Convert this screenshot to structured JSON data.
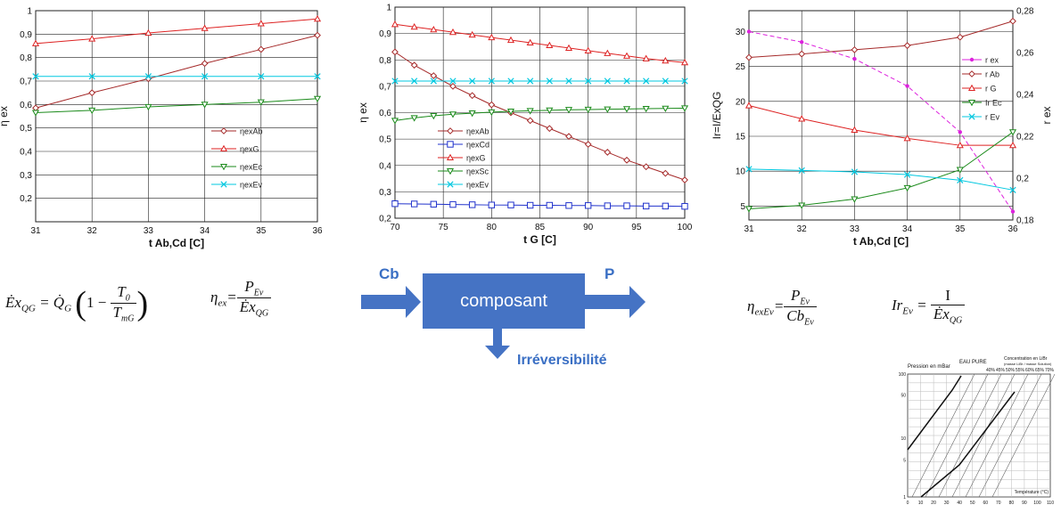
{
  "chart_data": [
    {
      "type": "line",
      "ylabel": "η ex",
      "xlabel": "t Ab,Cd [C]",
      "x": [
        31,
        32,
        33,
        34,
        35,
        36
      ],
      "xlim": [
        31,
        36
      ],
      "ylim": [
        0.1,
        1.0
      ],
      "xticks": [
        "31",
        "32",
        "33",
        "34",
        "35",
        "36"
      ],
      "yticks": [
        "0,2",
        "0,3",
        "0,4",
        "0,5",
        "0,6",
        "0,7",
        "0,8",
        "0,9",
        "1"
      ],
      "grid": true,
      "legend_position": "bottom-right",
      "series": [
        {
          "name": "ηexAb",
          "color": "#a52a2a",
          "marker": "diamond",
          "values": [
            0.585,
            0.65,
            0.71,
            0.775,
            0.835,
            0.895
          ]
        },
        {
          "name": "ηexG",
          "color": "#dd2222",
          "marker": "triangle",
          "values": [
            0.86,
            0.88,
            0.905,
            0.925,
            0.945,
            0.965
          ]
        },
        {
          "name": "ηexEc",
          "color": "#1a8a1a",
          "marker": "triangle-down",
          "values": [
            0.565,
            0.575,
            0.59,
            0.6,
            0.61,
            0.625
          ]
        },
        {
          "name": "ηexEv",
          "color": "#00c8e0",
          "marker": "x",
          "values": [
            0.72,
            0.72,
            0.72,
            0.72,
            0.72,
            0.72
          ]
        }
      ]
    },
    {
      "type": "line",
      "ylabel": "η ex",
      "xlabel": "t G [C]",
      "x": [
        70,
        72,
        74,
        76,
        78,
        80,
        82,
        84,
        86,
        88,
        90,
        92,
        94,
        96,
        98,
        100
      ],
      "xlim": [
        70,
        100
      ],
      "ylim": [
        0.2,
        1.0
      ],
      "xticks": [
        "70",
        "75",
        "80",
        "85",
        "90",
        "95",
        "100"
      ],
      "yticks": [
        "0,2",
        "0,3",
        "0,4",
        "0,5",
        "0,6",
        "0,7",
        "0,8",
        "0,9",
        "1"
      ],
      "grid": true,
      "legend_position": "bottom-left",
      "series": [
        {
          "name": "ηexAb",
          "color": "#a52a2a",
          "marker": "diamond",
          "values": [
            0.83,
            0.78,
            0.74,
            0.7,
            0.665,
            0.63,
            0.6,
            0.57,
            0.54,
            0.51,
            0.48,
            0.45,
            0.42,
            0.395,
            0.37,
            0.345
          ]
        },
        {
          "name": "ηexCd",
          "color": "#2233cc",
          "marker": "square",
          "values": [
            0.255,
            0.254,
            0.253,
            0.252,
            0.251,
            0.25,
            0.25,
            0.249,
            0.249,
            0.248,
            0.248,
            0.247,
            0.247,
            0.246,
            0.246,
            0.245
          ]
        },
        {
          "name": "ηexG",
          "color": "#dd2222",
          "marker": "triangle",
          "values": [
            0.935,
            0.925,
            0.915,
            0.905,
            0.895,
            0.885,
            0.875,
            0.865,
            0.855,
            0.845,
            0.835,
            0.825,
            0.815,
            0.805,
            0.797,
            0.79
          ]
        },
        {
          "name": "ηexSc",
          "color": "#1a8a1a",
          "marker": "triangle-down",
          "values": [
            0.57,
            0.58,
            0.588,
            0.594,
            0.598,
            0.602,
            0.605,
            0.607,
            0.609,
            0.611,
            0.612,
            0.613,
            0.614,
            0.615,
            0.616,
            0.617
          ]
        },
        {
          "name": "ηexEv",
          "color": "#00c8e0",
          "marker": "x",
          "values": [
            0.72,
            0.72,
            0.72,
            0.72,
            0.72,
            0.72,
            0.72,
            0.72,
            0.72,
            0.72,
            0.72,
            0.72,
            0.72,
            0.72,
            0.72,
            0.72
          ]
        }
      ]
    },
    {
      "type": "line",
      "ylabel": "Ir=I/ExQG",
      "ylabel_right": "r ex",
      "xlabel": "t Ab,Cd [C]",
      "x": [
        31,
        32,
        33,
        34,
        35,
        36
      ],
      "xlim": [
        31,
        36
      ],
      "ylim": [
        3,
        33
      ],
      "ylim_right": [
        0.18,
        0.28
      ],
      "xticks": [
        "31",
        "32",
        "33",
        "34",
        "35",
        "36"
      ],
      "yticks": [
        "5",
        "10",
        "15",
        "20",
        "25",
        "30"
      ],
      "yticks_right": [
        "0,18",
        "0,2",
        "0,22",
        "0,24",
        "0,26",
        "0,28"
      ],
      "grid": true,
      "legend_position": "right",
      "series": [
        {
          "name": "r ex",
          "axis": "right",
          "color": "#dd22dd",
          "marker": "dot",
          "values": [
            0.27,
            0.265,
            0.257,
            0.244,
            0.222,
            0.184
          ]
        },
        {
          "name": "r Ab",
          "color": "#a52a2a",
          "marker": "diamond",
          "values": [
            26.3,
            26.8,
            27.4,
            28.0,
            29.2,
            31.5
          ]
        },
        {
          "name": "r G",
          "color": "#dd2222",
          "marker": "triangle",
          "values": [
            19.4,
            17.5,
            15.9,
            14.7,
            13.7,
            13.7
          ]
        },
        {
          "name": "Ir Ec",
          "color": "#1a8a1a",
          "marker": "triangle-down",
          "values": [
            4.6,
            5.1,
            6.0,
            7.6,
            10.2,
            15.6
          ]
        },
        {
          "name": "r Ev",
          "color": "#00c8e0",
          "marker": "x",
          "values": [
            10.3,
            10.1,
            9.9,
            9.5,
            8.7,
            7.3
          ]
        }
      ]
    }
  ],
  "diagram": {
    "input_label": "Cb",
    "output_label": "P",
    "box_label": "composant",
    "loss_label": "Irréversibilité",
    "arrow_color": "#4573c4"
  },
  "inset": {
    "title": "Pression en mBar",
    "water_label": "EAU PURE",
    "conc_title": "Concentration en LiBr",
    "conc_subtitle": "(masse LiBr / masse Solution)",
    "conc_values": [
      "40%",
      "45%",
      "50%",
      "55%",
      "60%",
      "65%",
      "70%"
    ],
    "x_title": "Température (°C)",
    "xticks": [
      "0",
      "10",
      "20",
      "30",
      "40",
      "50",
      "60",
      "70",
      "80",
      "90",
      "100",
      "110"
    ],
    "yticks": [
      "1",
      "5",
      "10",
      "50",
      "100"
    ]
  }
}
